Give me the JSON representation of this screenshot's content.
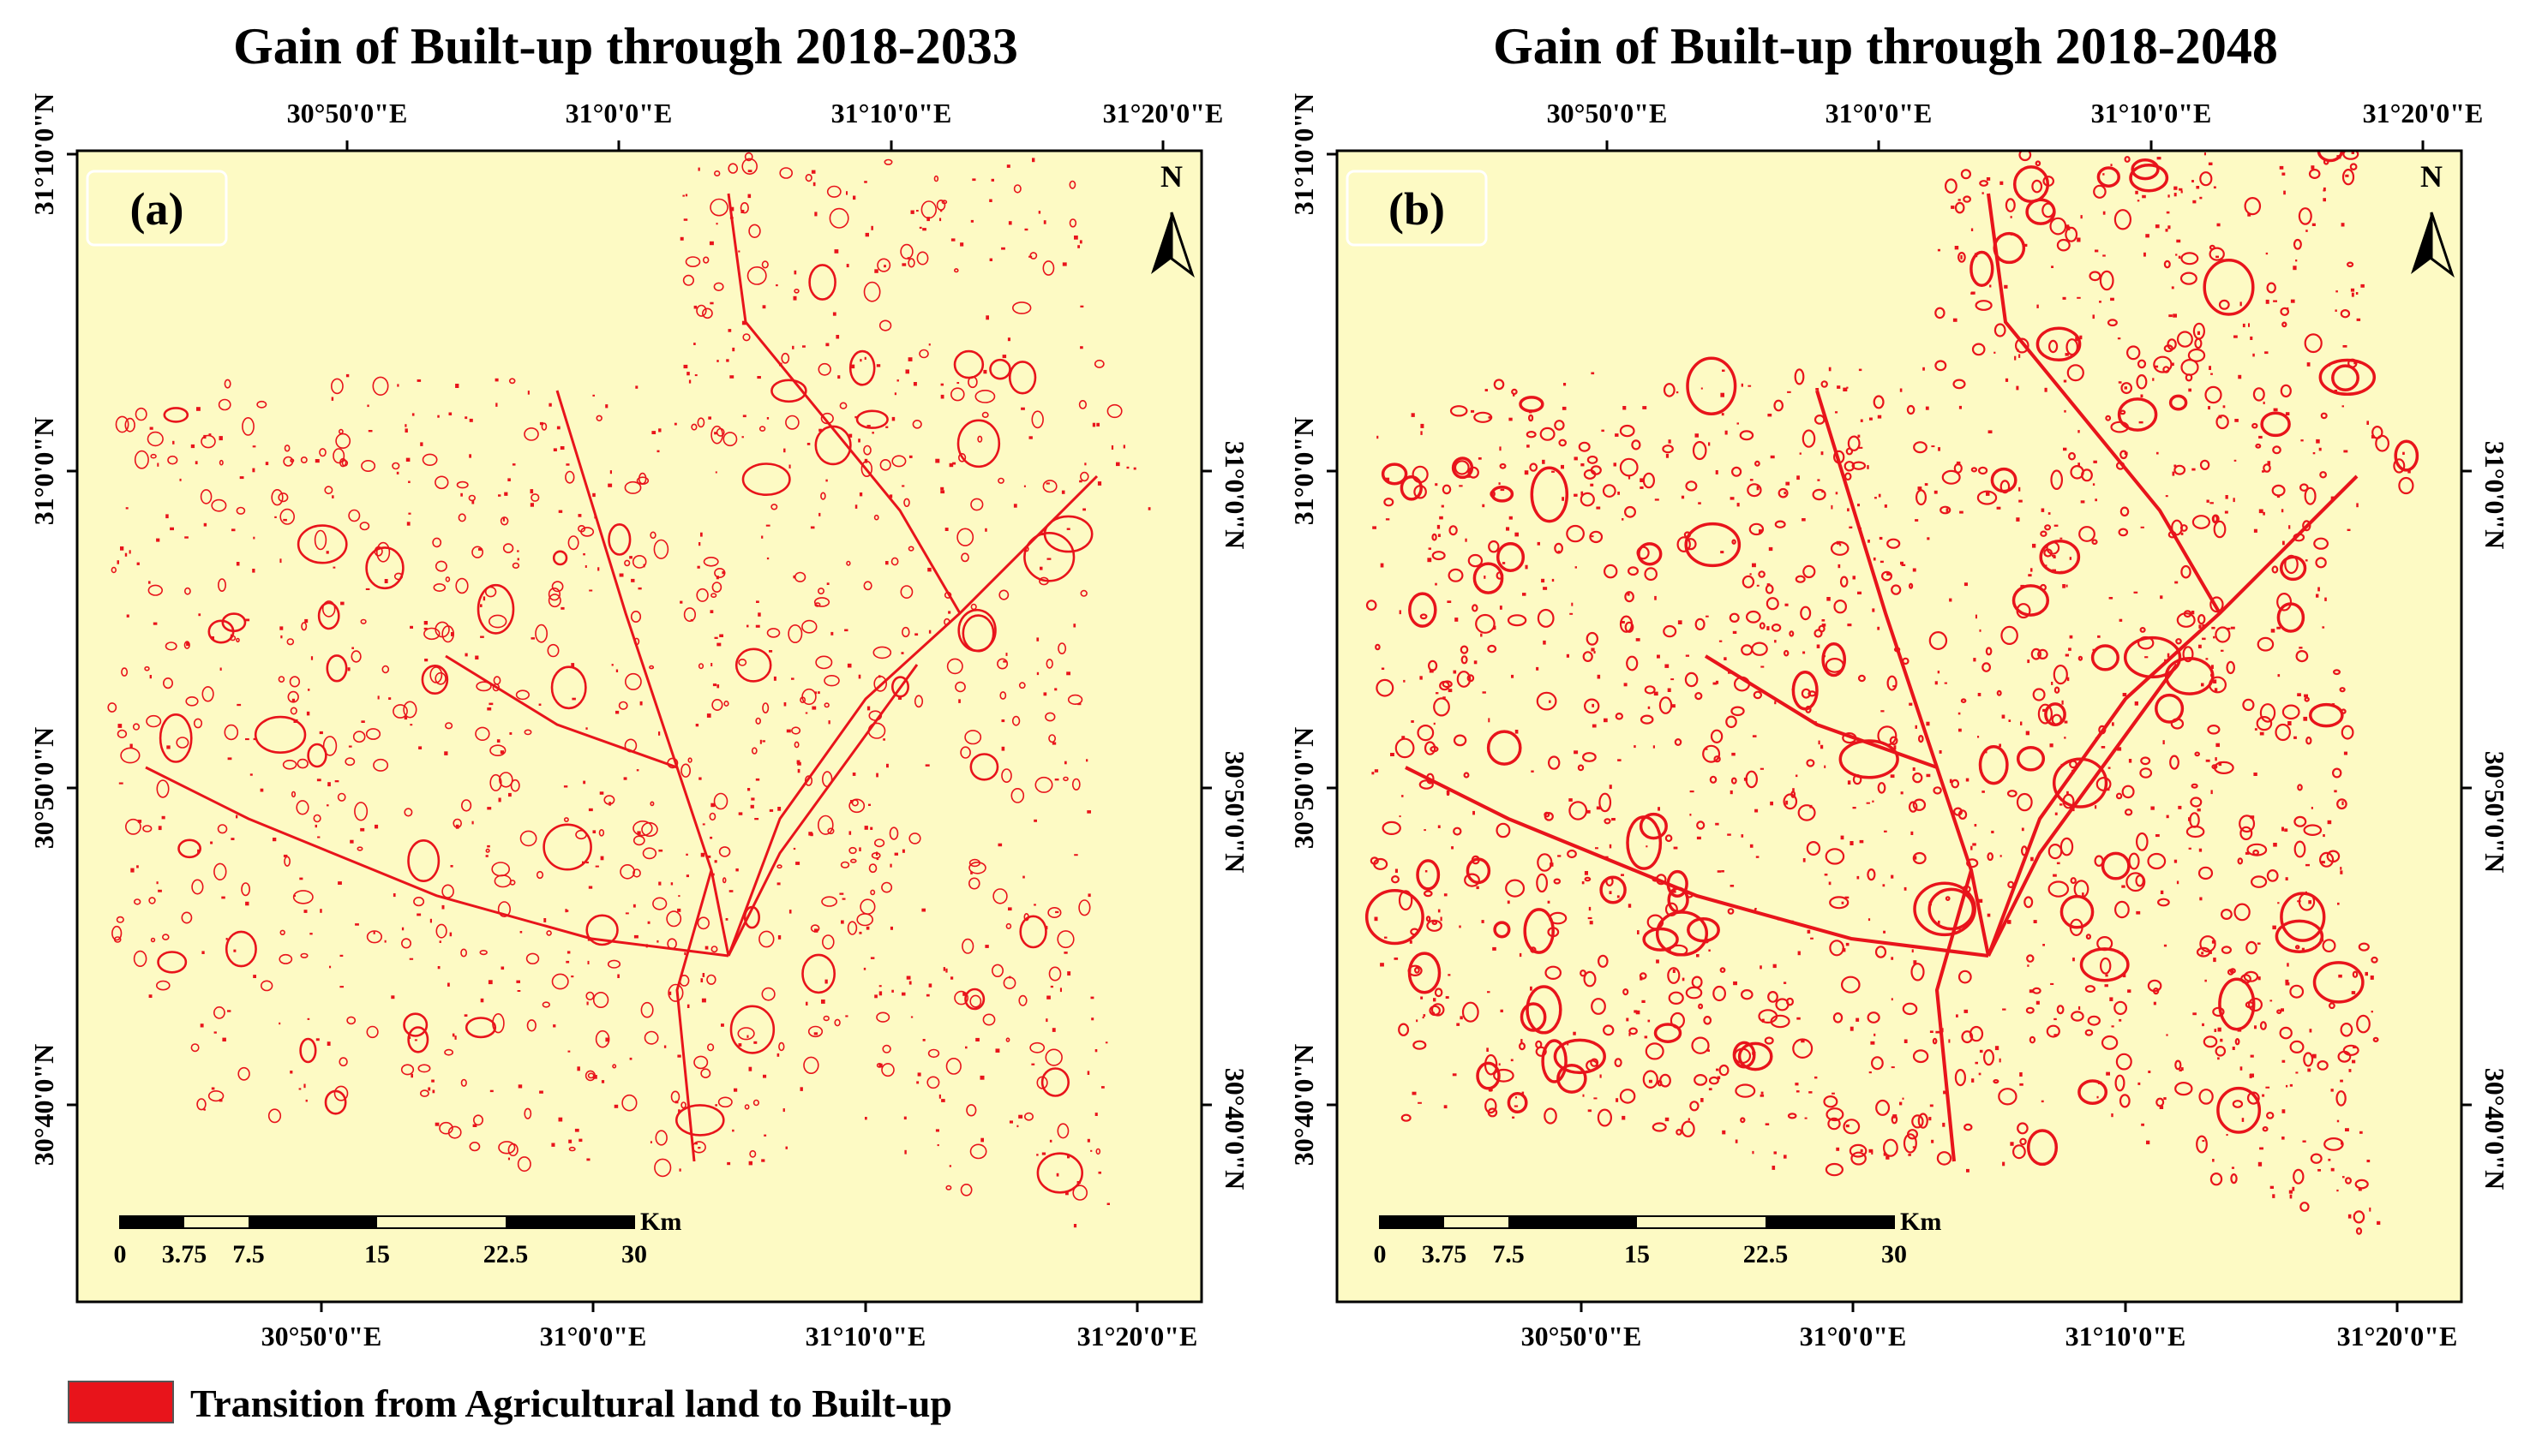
{
  "colors": {
    "map_background": "#FDFAC4",
    "transition": "#E8141B",
    "frame": "#000000",
    "panel_label_box": "#FFFFFF"
  },
  "panels": [
    {
      "title": "Gain of Built-up through 2018-2033",
      "label": "(a)",
      "seed": 11,
      "density": 1.0
    },
    {
      "title": "Gain of Built-up through 2018-2048",
      "label": "(b)",
      "seed": 29,
      "density": 1.35
    }
  ],
  "axes": {
    "longitude_labels": [
      "30°50'0\"E",
      "31°0'0\"E",
      "31°10'0\"E",
      "31°20'0\"E"
    ],
    "latitude_labels": [
      "31°10'0\"N",
      "31°0'0\"N",
      "30°50'0\"N",
      "30°40'0\"N"
    ]
  },
  "north_arrow": {
    "letter": "N"
  },
  "scale_bar": {
    "unit": "Km",
    "ticks": [
      "0",
      "3.75",
      "7.5",
      "15",
      "22.5",
      "30"
    ]
  },
  "legend": {
    "label": "Transition from Agricultural land to Built-up",
    "swatch_icon": "red-rectangle-icon"
  }
}
